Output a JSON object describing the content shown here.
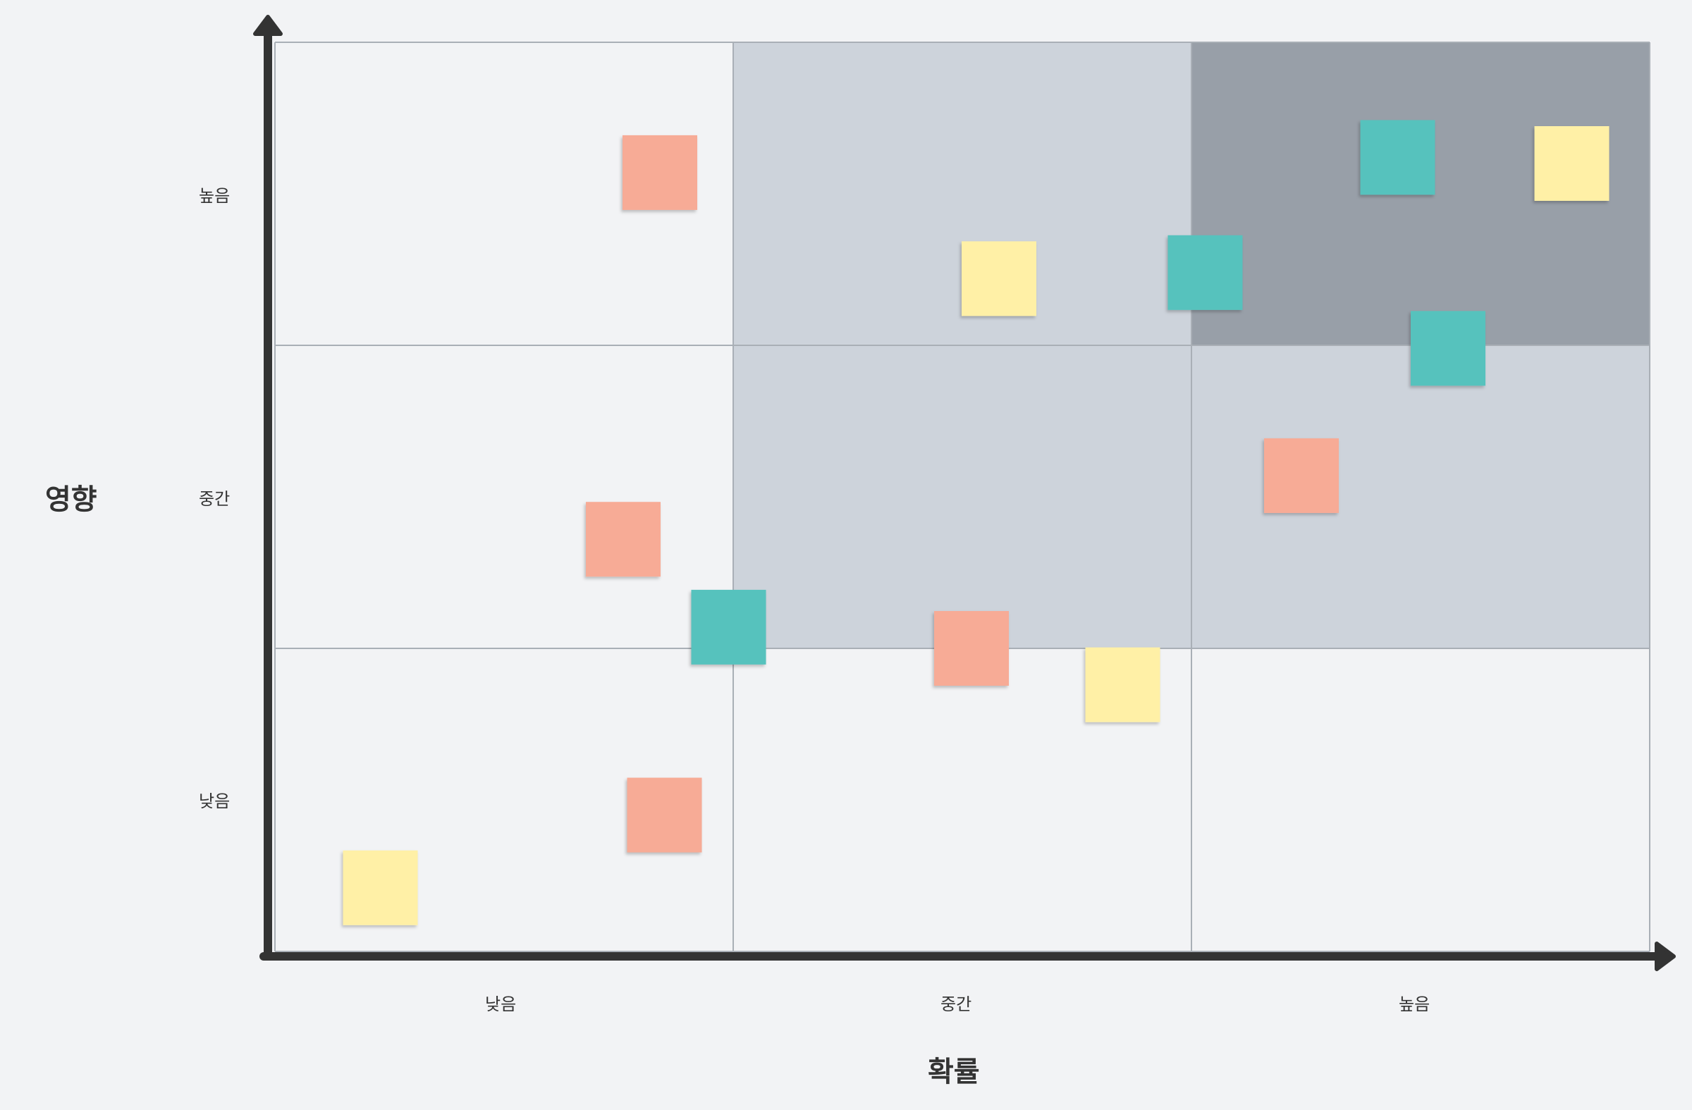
{
  "y_axis": {
    "title": "영향",
    "ticks": [
      "높음",
      "중간",
      "낮음"
    ]
  },
  "x_axis": {
    "title": "확률",
    "ticks": [
      "낮음",
      "중간",
      "높음"
    ]
  },
  "colors": {
    "background": "#f2f3f5",
    "zone_light": "#cdd3db",
    "zone_dark": "#989fa8",
    "grid_line": "#a9afb6",
    "axis": "#333333",
    "note_salmon": "#f7ab96",
    "note_teal": "#57c2bd",
    "note_yellow": "#fff0a6"
  },
  "zones": [
    {
      "col": 0,
      "row": 0,
      "shade": "none"
    },
    {
      "col": 1,
      "row": 0,
      "shade": "light"
    },
    {
      "col": 2,
      "row": 0,
      "shade": "dark"
    },
    {
      "col": 0,
      "row": 1,
      "shade": "none"
    },
    {
      "col": 1,
      "row": 1,
      "shade": "light"
    },
    {
      "col": 2,
      "row": 1,
      "shade": "light"
    },
    {
      "col": 0,
      "row": 2,
      "shade": "none"
    },
    {
      "col": 1,
      "row": 2,
      "shade": "none"
    },
    {
      "col": 2,
      "row": 2,
      "shade": "none"
    }
  ],
  "sticky_notes": [
    {
      "color": "salmon",
      "probability": 0.84,
      "impact": 2.57
    },
    {
      "color": "yellow",
      "probability": 1.58,
      "impact": 2.22
    },
    {
      "color": "teal",
      "probability": 2.03,
      "impact": 2.24
    },
    {
      "color": "teal",
      "probability": 2.45,
      "impact": 2.62
    },
    {
      "color": "yellow",
      "probability": 2.83,
      "impact": 2.6
    },
    {
      "color": "teal",
      "probability": 2.56,
      "impact": 1.99
    },
    {
      "color": "salmon",
      "probability": 2.24,
      "impact": 1.57
    },
    {
      "color": "salmon",
      "probability": 0.76,
      "impact": 1.36
    },
    {
      "color": "teal",
      "probability": 0.99,
      "impact": 1.07
    },
    {
      "color": "salmon",
      "probability": 1.52,
      "impact": 1.0
    },
    {
      "color": "yellow",
      "probability": 1.85,
      "impact": 0.88
    },
    {
      "color": "salmon",
      "probability": 0.85,
      "impact": 0.45
    },
    {
      "color": "yellow",
      "probability": 0.23,
      "impact": 0.21
    }
  ]
}
